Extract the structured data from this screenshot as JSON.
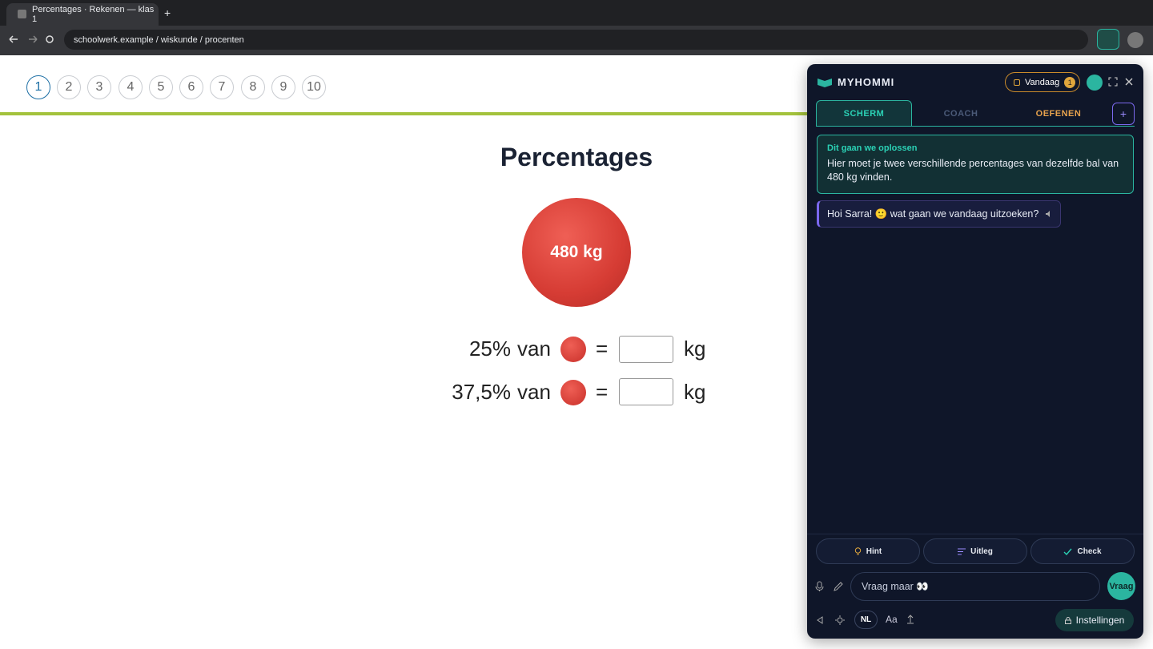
{
  "browser": {
    "tab_title": "Percentages · Rekenen — klas 1",
    "new_tab": "+",
    "url": "schoolwerk.example / wiskunde / procenten"
  },
  "pagination": [
    1,
    2,
    3,
    4,
    5,
    6,
    7,
    8,
    9,
    10
  ],
  "exercise": {
    "title": "Percentages",
    "ball_label": "480 kg",
    "rows": [
      {
        "percent": "25%",
        "van": "van",
        "equals": "=",
        "unit": "kg"
      },
      {
        "percent": "37,5%",
        "van": "van",
        "equals": "=",
        "unit": "kg"
      }
    ]
  },
  "assistant": {
    "name": "MYHOMMI",
    "today": "Vandaag",
    "today_count": 1,
    "tabs": [
      "SCHERM",
      "COACH",
      "OEFENEN"
    ],
    "add": "+",
    "card": {
      "title": "Dit gaan we oplossen",
      "text": "Hier moet je twee verschillende percentages van dezelfde bal van 480 kg vinden."
    },
    "message": "Hoi Sarra! 🙂 wat gaan we vandaag uitzoeken?",
    "actions": [
      "Hint",
      "Uitleg",
      "Check"
    ],
    "input_placeholder": "Vraag maar 👀",
    "send": "Vraag",
    "language": "NL",
    "font": "Aa",
    "settings": "Instellingen"
  }
}
